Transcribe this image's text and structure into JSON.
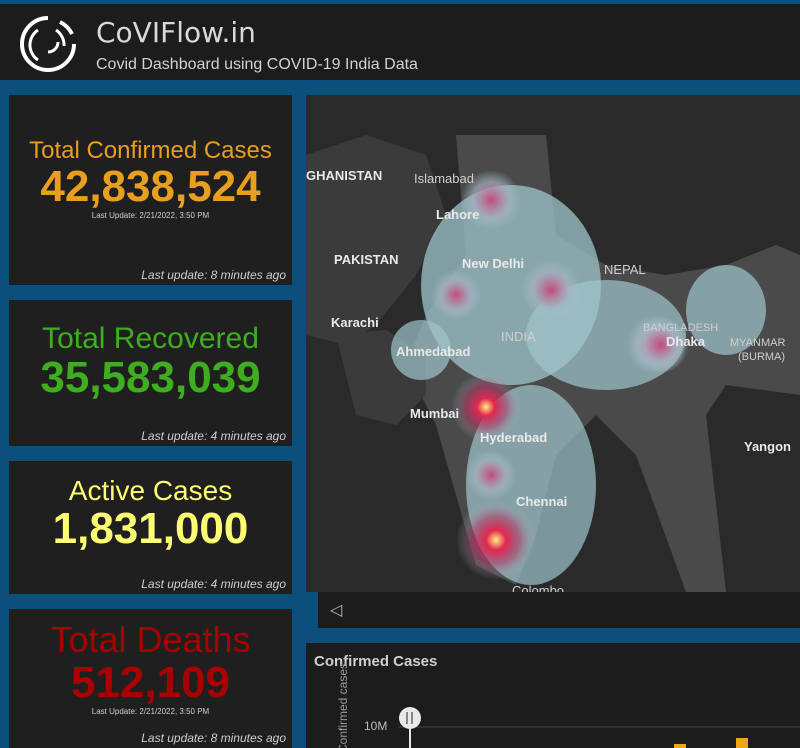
{
  "header": {
    "title": "CoVIFlow.in",
    "subtitle": "Covid Dashboard using COVID-19 India Data"
  },
  "cards": {
    "confirmed": {
      "label": "Total Confirmed Cases",
      "value": "42,838,524",
      "sub": "Last Update: 2/21/2022, 3:50 PM",
      "foot": "Last update: 8 minutes ago",
      "color": "#e89f1f"
    },
    "recovered": {
      "label": "Total Recovered",
      "value": "35,583,039",
      "foot": "Last update: 4 minutes ago",
      "color": "#3fae1e"
    },
    "active": {
      "label": "Active Cases",
      "value": "1,831,000",
      "foot": "Last update: 4 minutes ago",
      "color": "#ffff73"
    },
    "deaths": {
      "label": "Total Deaths",
      "value": "512,109",
      "sub": "Last Update: 2/21/2022, 3:50 PM",
      "foot": "Last update: 8 minutes ago",
      "color": "#a80000"
    }
  },
  "map": {
    "labels": {
      "afghanistan": "GHANISTAN",
      "islamabad": "Islamabad",
      "lahore": "Lahore",
      "pakistan": "PAKISTAN",
      "new_delhi": "New Delhi",
      "nepal": "NEPAL",
      "karachi": "Karachi",
      "india": "INDIA",
      "bangladesh": "BANGLADESH",
      "dhaka": "Dhaka",
      "myanmar": "MYANMAR",
      "burma": "(BURMA)",
      "ahmedabad": "Ahmedabad",
      "mumbai": "Mumbai",
      "hyderabad": "Hyderabad",
      "yangon": "Yangon",
      "chennai": "Chennai",
      "colombo": "Colombo"
    },
    "prev_icon": "chevron-left-icon"
  },
  "chart": {
    "title": "Confirmed Cases",
    "ylabel": "Confirmed cases",
    "tick": "10M",
    "slider_icon": "slider-handle-icon",
    "bar_color": "#f2a516"
  }
}
